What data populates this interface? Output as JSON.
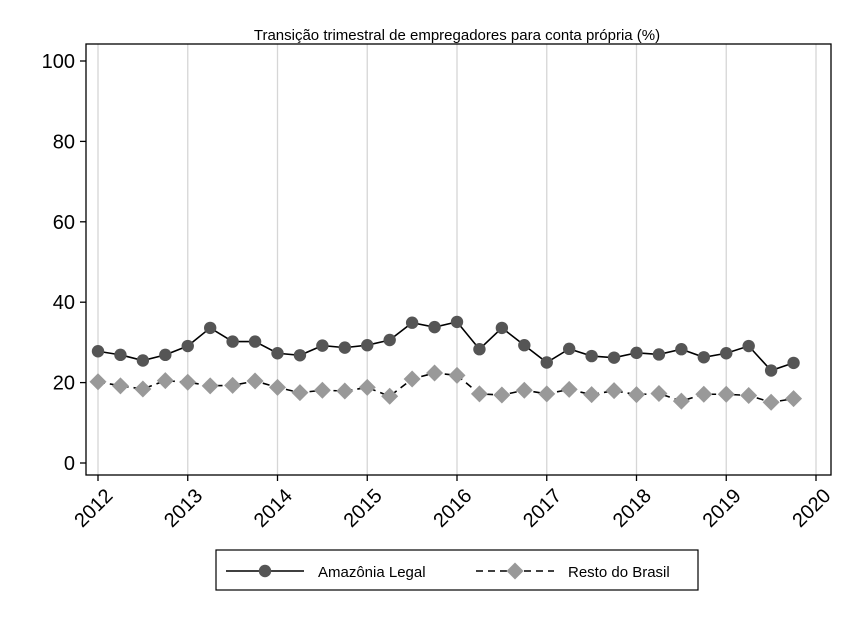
{
  "chart_data": {
    "type": "line",
    "title": "Transição trimestral de empregadores para conta própria (%)",
    "xlabel": "",
    "ylabel": "",
    "xlim": [
      2012,
      2020
    ],
    "ylim": [
      0,
      100
    ],
    "yticks": [
      0,
      20,
      40,
      60,
      80,
      100
    ],
    "xticks": [
      2012,
      2013,
      2014,
      2015,
      2016,
      2017,
      2018,
      2019,
      2020
    ],
    "grid": "vertical",
    "legend_position": "bottom",
    "x": [
      2012.0,
      2012.25,
      2012.5,
      2012.75,
      2013.0,
      2013.25,
      2013.5,
      2013.75,
      2014.0,
      2014.25,
      2014.5,
      2014.75,
      2015.0,
      2015.25,
      2015.5,
      2015.75,
      2016.0,
      2016.25,
      2016.5,
      2016.75,
      2017.0,
      2017.25,
      2017.5,
      2017.75,
      2018.0,
      2018.25,
      2018.5,
      2018.75,
      2019.0,
      2019.25,
      2019.5,
      2019.75
    ],
    "series": [
      {
        "name": "Amazônia Legal",
        "color": "#555555",
        "marker": "circle",
        "line": "solid",
        "values": [
          27.8,
          26.9,
          25.5,
          26.9,
          29.1,
          33.6,
          30.2,
          30.2,
          27.3,
          26.8,
          29.2,
          28.7,
          29.3,
          30.6,
          34.9,
          33.8,
          35.1,
          28.3,
          33.6,
          29.3,
          25.0,
          28.4,
          26.6,
          26.2,
          27.4,
          27.0,
          28.3,
          26.3,
          27.3,
          29.1,
          23.0,
          24.9
        ]
      },
      {
        "name": "Resto do Brasil",
        "color": "#999999",
        "marker": "diamond",
        "line": "dashed",
        "values": [
          20.2,
          19.2,
          18.4,
          20.5,
          20.1,
          19.2,
          19.3,
          20.4,
          18.8,
          17.5,
          18.1,
          17.9,
          18.8,
          16.6,
          20.9,
          22.4,
          21.8,
          17.2,
          16.9,
          18.1,
          17.2,
          18.3,
          17.0,
          18.0,
          17.0,
          17.3,
          15.4,
          17.1,
          17.1,
          16.8,
          15.1,
          16.0
        ]
      }
    ]
  }
}
